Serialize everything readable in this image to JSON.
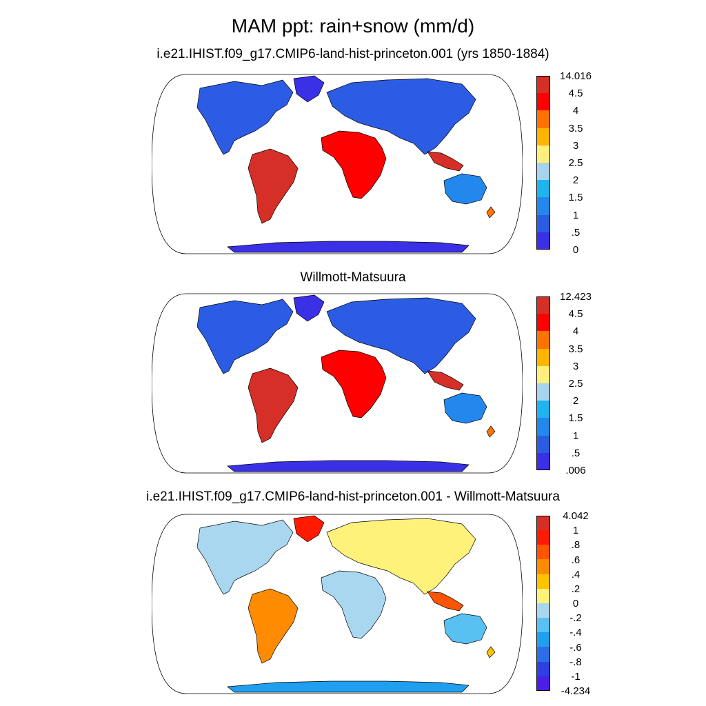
{
  "title": "MAM ppt: rain+snow (mm/d)",
  "panels": [
    {
      "title": "i.e21.IHIST.f09_g17.CMIP6-land-hist-princeton.001 (yrs 1850-1884)",
      "labels": [
        "14.016",
        "4.5",
        "4",
        "3.5",
        "3",
        "2.5",
        "2",
        "1.5",
        "1",
        ".5",
        "0"
      ],
      "colors": [
        "#d62f27",
        "#ff0000",
        "#ff7300",
        "#ffb400",
        "#ffef7c",
        "#a6d4ee",
        "#1eb4f0",
        "#2288ee",
        "#2b5ce3",
        "#3a30e6"
      ]
    },
    {
      "title": "Willmott-Matsuura",
      "labels": [
        "12.423",
        "4.5",
        "4",
        "3.5",
        "3",
        "2.5",
        "2",
        "1.5",
        "1",
        ".5",
        ".006"
      ],
      "colors": [
        "#d62f27",
        "#ff0000",
        "#ff7300",
        "#ffb400",
        "#ffef7c",
        "#a6d4ee",
        "#1eb4f0",
        "#2288ee",
        "#2b5ce3",
        "#3a30e6"
      ]
    },
    {
      "title": "i.e21.IHIST.f09_g17.CMIP6-land-hist-princeton.001 - Willmott-Matsuura",
      "labels": [
        "4.042",
        "1",
        ".8",
        ".6",
        ".4",
        ".2",
        "0",
        "-.2",
        "-.4",
        "-.6",
        "-.8",
        "-1",
        "-4.234"
      ],
      "colors": [
        "#d62f27",
        "#ff1a00",
        "#ff5500",
        "#ff8c00",
        "#ffc200",
        "#fff27a",
        "#aad7f0",
        "#58c1f2",
        "#1e9ff0",
        "#2b6ee8",
        "#2f40e0",
        "#4a1de8"
      ]
    }
  ]
}
